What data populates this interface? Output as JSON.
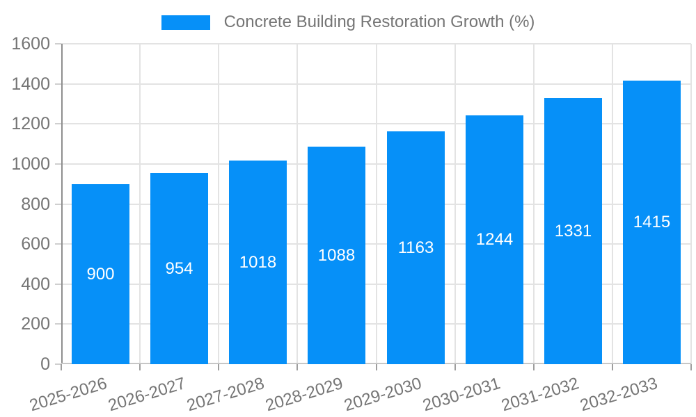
{
  "chart_data": {
    "type": "bar",
    "title": "Concrete Building Restoration Growth (%)",
    "categories": [
      "2025-2026",
      "2026-2027",
      "2027-2028",
      "2028-2029",
      "2029-2030",
      "2030-2031",
      "2031-2032",
      "2032-2033"
    ],
    "values": [
      900,
      954,
      1018,
      1088,
      1163,
      1244,
      1331,
      1415
    ],
    "series_name": "Concrete Building Restoration Growth (%)",
    "xlabel": "",
    "ylabel": "",
    "ylim": [
      0,
      1600
    ],
    "yticks": [
      0,
      200,
      400,
      600,
      800,
      1000,
      1200,
      1400,
      1600
    ],
    "grid": true,
    "legend_position": "top-center",
    "bar_labels_inside": true,
    "colors": {
      "bar": "#0690f8",
      "bar_label": "#ffffff",
      "axis_text": "#757575",
      "gridline": "#e3e3e3",
      "y_axis_line": "#8f8f8f",
      "x_axis_line": "#c6c6c6",
      "y_tick": "#cfcfcf",
      "x_tick": "#9e9e9e",
      "background": "#ffffff"
    }
  }
}
